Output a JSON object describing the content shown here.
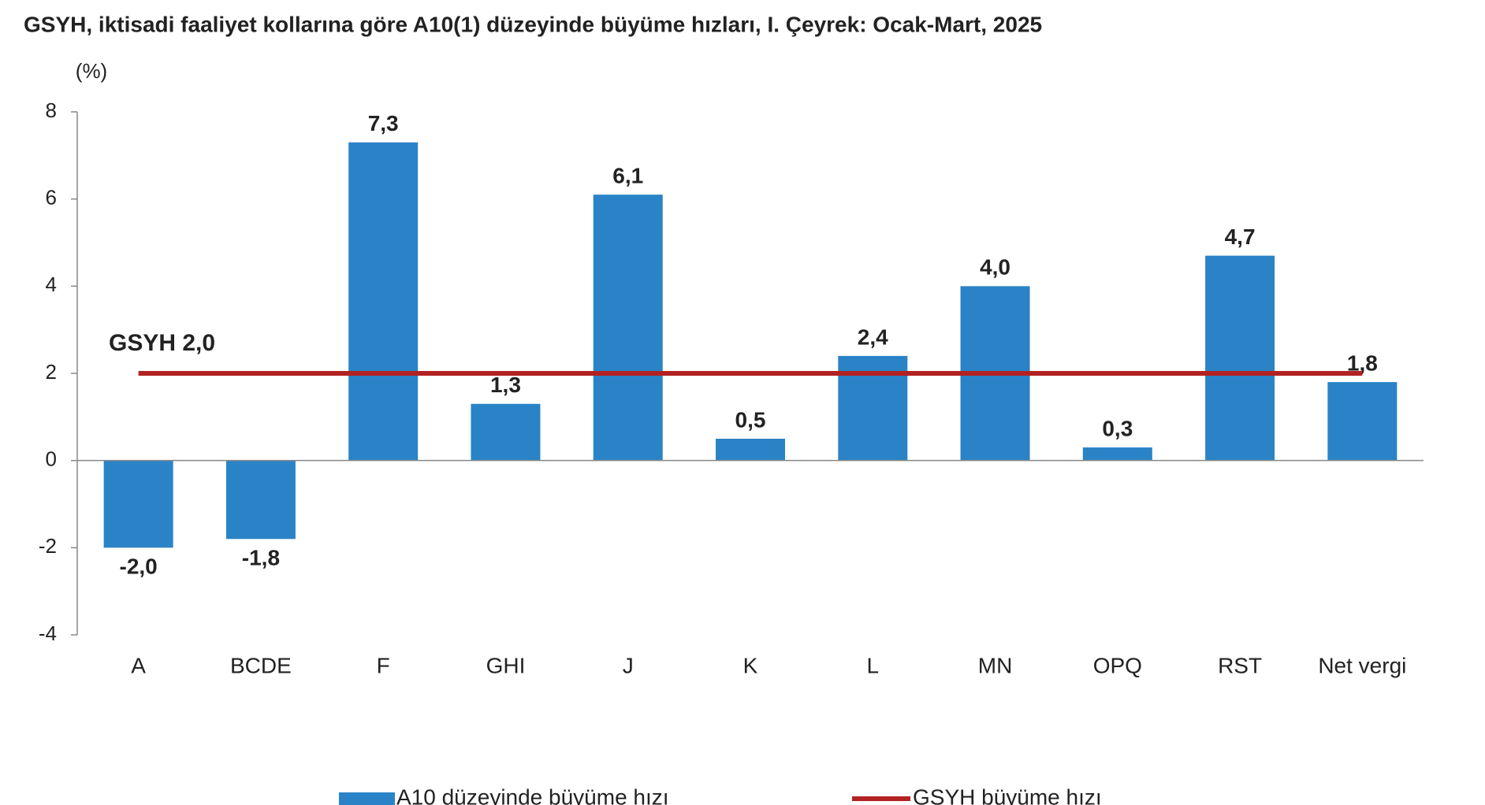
{
  "chart_data": {
    "type": "bar",
    "title": "GSYH, iktisadi faaliyet kollarına göre A10(1) düzeyinde büyüme hızları, I. Çeyrek: Ocak-Mart, 2025",
    "y_unit": "(%)",
    "categories": [
      "A",
      "BCDE",
      "F",
      "GHI",
      "J",
      "K",
      "L",
      "MN",
      "OPQ",
      "RST",
      "Net vergi"
    ],
    "series": [
      {
        "name": "A10 düzeyinde büyüme hızı",
        "color": "#2a83c6",
        "values": [
          -2.0,
          -1.8,
          7.3,
          1.3,
          6.1,
          0.5,
          2.4,
          4.0,
          0.3,
          4.7,
          1.8
        ],
        "value_labels": [
          "-2,0",
          "-1,8",
          "7,3",
          "1,3",
          "6,1",
          "0,5",
          "2,4",
          "4,0",
          "0,3",
          "4,7",
          "1,8"
        ]
      }
    ],
    "reference_line": {
      "name": "GSYH büyüme hızı",
      "color": "#b22222",
      "value": 2.0,
      "label": "GSYH 2,0"
    },
    "ylim": [
      -4,
      8
    ],
    "yticks": [
      -4,
      -2,
      0,
      2,
      4,
      6,
      8
    ],
    "legend": "bottom"
  }
}
